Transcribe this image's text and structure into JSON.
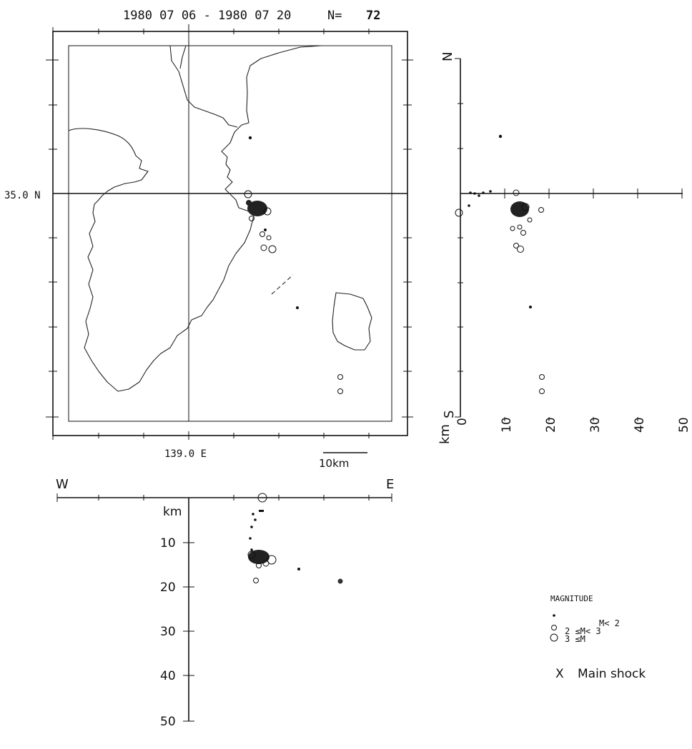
{
  "header": {
    "date_range": "1980 07 06 - 1980 07 20",
    "count_label": "N=",
    "count_value": "72"
  },
  "map": {
    "lat_label": "35.0 N",
    "lon_label": "139.0 E",
    "scale_label": "10km"
  },
  "ns_section": {
    "north_label": "N",
    "south_label": "S",
    "km_label": "km",
    "depth_ticks": [
      "0",
      "10",
      "20",
      "30",
      "40",
      "50"
    ]
  },
  "ew_section": {
    "west_label": "W",
    "east_label": "E",
    "km_label": "km",
    "depth_ticks": [
      "10",
      "20",
      "30",
      "40",
      "50"
    ]
  },
  "legend": {
    "title": "MAGNITUDE",
    "items": [
      {
        "symbol": "dot",
        "label": "M< 2"
      },
      {
        "symbol": "small-circle",
        "label": "2 ≤M< 3"
      },
      {
        "symbol": "large-circle",
        "label": "3 ≤M"
      }
    ],
    "main_shock_symbol": "X",
    "main_shock_label": "Main shock"
  },
  "chart_data": {
    "type": "scatter",
    "title": "1980 07 06 - 1980 07 20",
    "event_count": 72,
    "depth_axis": {
      "unit": "km",
      "ticks": [
        0,
        10,
        20,
        30,
        40,
        50
      ],
      "range": [
        0,
        50
      ]
    },
    "magnitude_classes": [
      "M< 2",
      "2 ≤M< 3",
      "3 ≤M"
    ],
    "ns_section_events": [
      {
        "depth_km": 0,
        "mag": "2 ≤M< 3"
      },
      {
        "depth_km": 1,
        "mag": "M< 2"
      },
      {
        "depth_km": 2,
        "mag": "M< 2"
      },
      {
        "depth_km": 3,
        "mag": "M< 2"
      },
      {
        "depth_km": 7,
        "mag": "M< 2"
      },
      {
        "depth_km": 10,
        "mag": "M< 2"
      },
      {
        "depth_km": 13,
        "mag": "2 ≤M< 3"
      },
      {
        "depth_km": 13,
        "mag": "3 ≤M"
      },
      {
        "depth_km": 14,
        "mag": "3 ≤M"
      },
      {
        "depth_km": 14.5,
        "mag": "2 ≤M< 3"
      },
      {
        "depth_km": 15,
        "mag": "2 ≤M< 3"
      },
      {
        "depth_km": 16.5,
        "mag": "M< 2"
      },
      {
        "depth_km": 19,
        "mag": "2 ≤M< 3"
      },
      {
        "depth_km": 19,
        "mag": "2 ≤M< 3"
      }
    ],
    "ew_section_events": [
      {
        "depth_km": 0,
        "mag": "3 ≤M"
      },
      {
        "depth_km": 1,
        "mag": "M< 2"
      },
      {
        "depth_km": 3,
        "mag": "M< 2"
      },
      {
        "depth_km": 4,
        "mag": "M< 2"
      },
      {
        "depth_km": 6,
        "mag": "M< 2"
      },
      {
        "depth_km": 9,
        "mag": "M< 2"
      },
      {
        "depth_km": 13,
        "mag": "3 ≤M"
      },
      {
        "depth_km": 14,
        "mag": "3 ≤M"
      },
      {
        "depth_km": 15,
        "mag": "2 ≤M< 3"
      },
      {
        "depth_km": 16.5,
        "mag": "M< 2"
      },
      {
        "depth_km": 19,
        "mag": "2 ≤M< 3"
      },
      {
        "depth_km": 19,
        "mag": "2 ≤M< 3"
      }
    ]
  }
}
